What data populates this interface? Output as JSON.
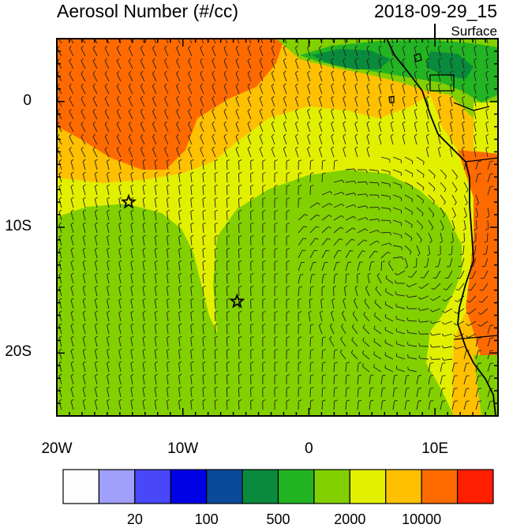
{
  "header": {
    "title": "Aerosol Number (#/cc)",
    "datetime": "2018-09-29_15",
    "level": "Surface"
  },
  "axes": {
    "lat_labels": [
      "0",
      "10S",
      "20S"
    ],
    "lat_values": [
      0,
      -10,
      -20
    ],
    "lon_labels": [
      "20W",
      "10W",
      "0",
      "10E"
    ],
    "lon_values": [
      -20,
      -10,
      0,
      10
    ],
    "lon_range": [
      -20,
      15
    ],
    "lat_range": [
      -25,
      5
    ]
  },
  "markers": [
    {
      "name": "star",
      "lon": -14.3,
      "lat": -8.0
    },
    {
      "name": "star",
      "lon": -5.7,
      "lat": -15.9
    }
  ],
  "colorbar": {
    "colors": [
      "#fdfdfd",
      "#a0a0fa",
      "#4848fa",
      "#0000e6",
      "#0a4a9b",
      "#0a8a3c",
      "#22b422",
      "#82d000",
      "#e2f000",
      "#ffc000",
      "#ff6a00",
      "#ff1e00"
    ],
    "labels": [
      "20",
      "100",
      "500",
      "2000",
      "10000"
    ]
  },
  "colors": {
    "high": "#ff6a00",
    "medium_high": "#ffc000",
    "medium": "#e2f000",
    "low": "#82d000",
    "lower": "#22b422",
    "lowest": "#0a8a3c",
    "coastline": "#000000"
  }
}
